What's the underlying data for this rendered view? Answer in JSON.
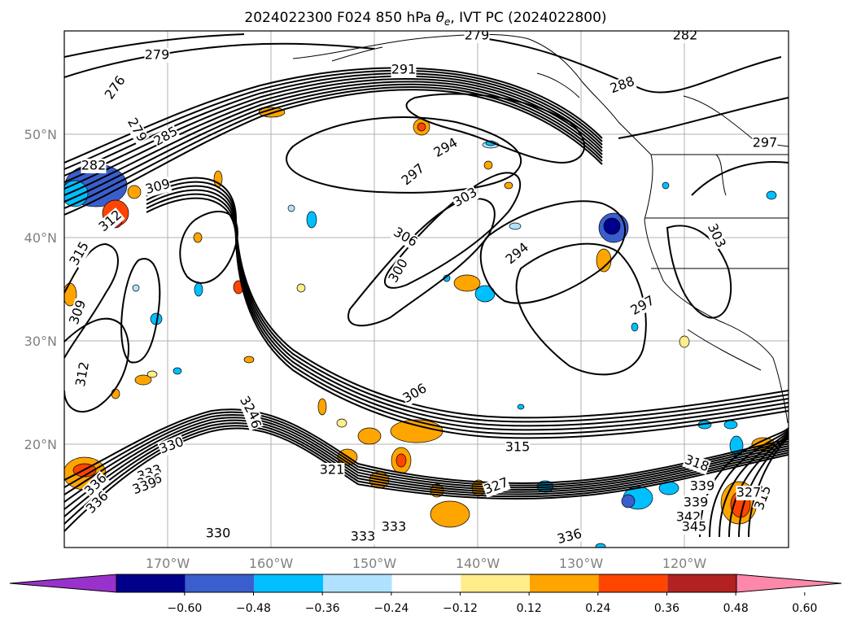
{
  "chart_data": {
    "type": "contour_map",
    "title": "2024022300 F024 850 hPa θe, IVT PC (2024022800)",
    "title_parts": {
      "prefix": "2024022300 F024 850 hPa ",
      "theta": "θ",
      "sub": "e",
      "suffix": ", IVT PC (2024022800)"
    },
    "x_ticks": [
      "170°W",
      "160°W",
      "150°W",
      "140°W",
      "130°W",
      "120°W"
    ],
    "y_ticks": [
      "50°N",
      "40°N",
      "30°N",
      "20°N"
    ],
    "contour_labels": [
      "276",
      "279",
      "279",
      "279",
      "282",
      "282",
      "285",
      "288",
      "291",
      "294",
      "294",
      "297",
      "297",
      "297",
      "300",
      "303",
      "303",
      "306",
      "306",
      "306",
      "309",
      "309",
      "312",
      "312",
      "315",
      "315",
      "315",
      "318",
      "321",
      "324",
      "327",
      "327",
      "330",
      "330",
      "333",
      "333",
      "333",
      "336",
      "336",
      "336",
      "336",
      "339",
      "339",
      "339",
      "342",
      "345"
    ],
    "colorbar": {
      "colors": [
        "#9932cc",
        "#00008b",
        "#3a5fcd",
        "#00bfff",
        "#b0e2ff",
        "#ffffff",
        "#ffec8b",
        "#ffa500",
        "#ff4500",
        "#b22222",
        "#ff88aa"
      ],
      "tick_labels": [
        "−0.60",
        "−0.48",
        "−0.36",
        "−0.24",
        "−0.12",
        "0.12",
        "0.24",
        "0.36",
        "0.48",
        "0.60"
      ],
      "values": [
        -0.6,
        -0.48,
        -0.36,
        -0.24,
        -0.12,
        0.12,
        0.24,
        0.36,
        0.48,
        0.6
      ],
      "extend": "both"
    },
    "grid": true
  }
}
